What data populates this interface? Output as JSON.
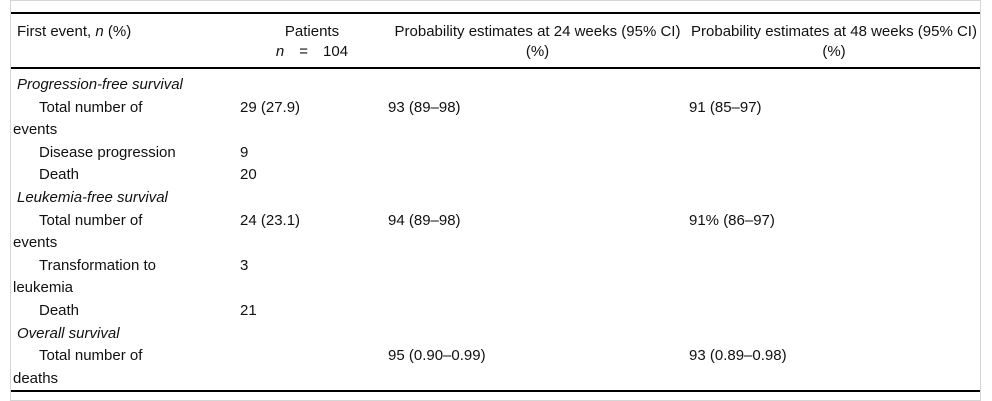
{
  "table": {
    "colors": {
      "rule": "#000000",
      "outer_border": "#d6d6d6",
      "text": "#111111",
      "background": "#ffffff"
    },
    "header": {
      "first_event": {
        "prefix": "First event, ",
        "n": "n",
        "suffix": " (%)"
      },
      "patients": {
        "line1": "Patients",
        "n": "n",
        "eq": "=",
        "value": "104"
      },
      "prob24": "Probability estimates at 24 weeks (95% CI) (%)",
      "prob48": "Probability estimates at 48 weeks (95% CI) (%)"
    },
    "rows": [
      {
        "type": "section",
        "label": "Progression-free survival"
      },
      {
        "type": "item",
        "label": "Total number of\nevents",
        "patients": "29 (27.9)",
        "p24": "93 (89–98)",
        "p48": "91 (85–97)"
      },
      {
        "type": "item",
        "label": "Disease progression",
        "patients": "9",
        "p24": "",
        "p48": ""
      },
      {
        "type": "item",
        "label": "Death",
        "patients": "20",
        "p24": "",
        "p48": ""
      },
      {
        "type": "section",
        "label": "Leukemia-free survival"
      },
      {
        "type": "item",
        "label": "Total number of\nevents",
        "patients": "24 (23.1)",
        "p24": "94 (89–98)",
        "p48": "91% (86–97)"
      },
      {
        "type": "item",
        "label": "Transformation to\nleukemia",
        "patients": "3",
        "p24": "",
        "p48": ""
      },
      {
        "type": "item",
        "label": "Death",
        "patients": "21",
        "p24": "",
        "p48": ""
      },
      {
        "type": "section",
        "label": "Overall survival"
      },
      {
        "type": "item",
        "label": "Total number of\ndeaths",
        "patients": "",
        "p24": "95 (0.90–0.99)",
        "p48": "93 (0.89–0.98)"
      }
    ]
  }
}
